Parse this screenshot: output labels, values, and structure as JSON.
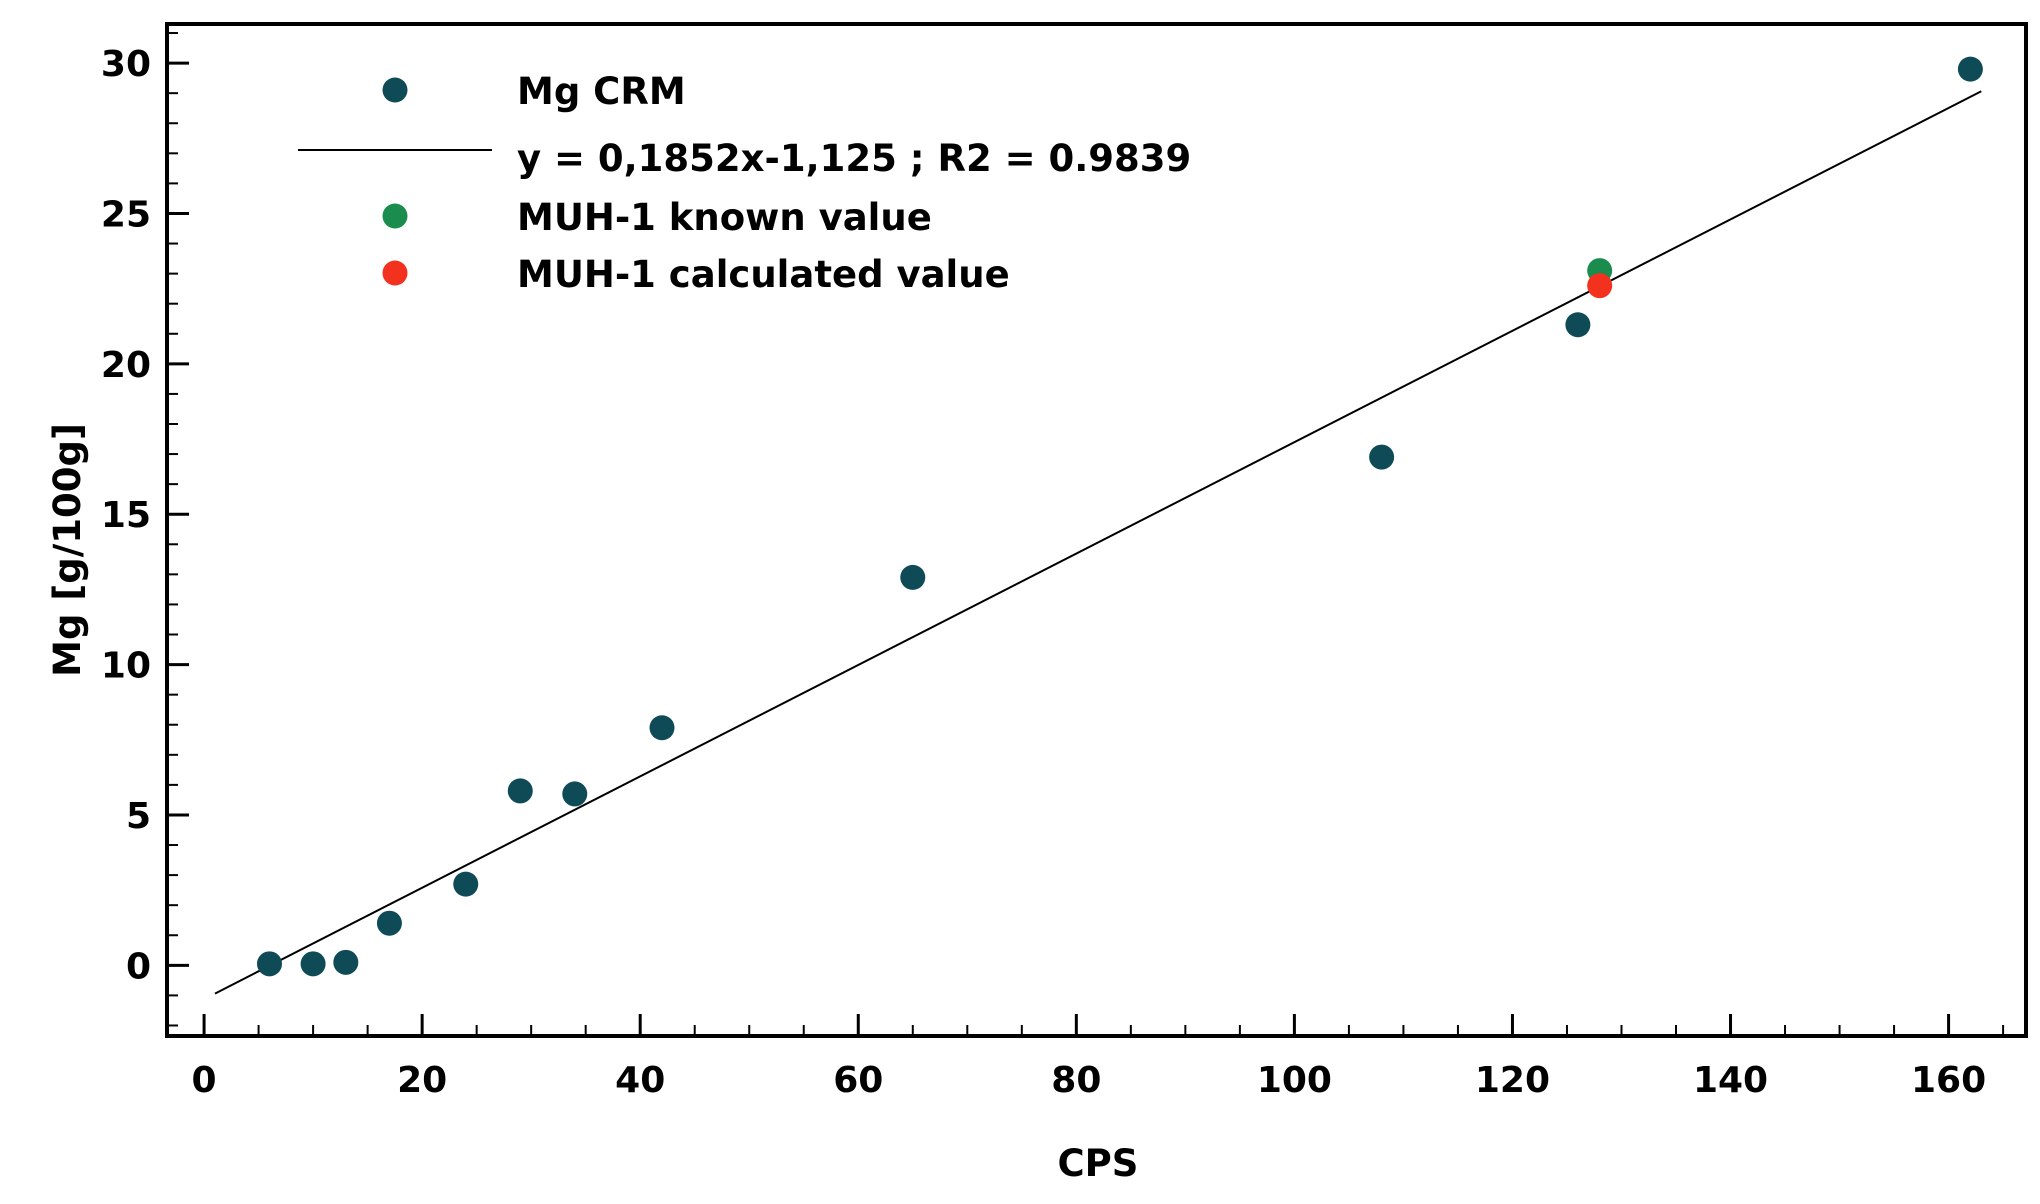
{
  "chart_data": {
    "type": "scatter",
    "title": "",
    "xlabel": "CPS",
    "ylabel": "Mg [g/100g]",
    "xlim": [
      -3.4,
      167.1
    ],
    "ylim": [
      -2.35,
      31.3
    ],
    "x_ticks": [
      0,
      20,
      40,
      60,
      80,
      100,
      120,
      140,
      160
    ],
    "y_ticks": [
      0,
      5,
      10,
      15,
      20,
      25,
      30
    ],
    "grid": false,
    "legend_position": "top-left",
    "series": [
      {
        "name": "Mg CRM",
        "color": "#0f4a57",
        "points": [
          [
            6,
            0.05
          ],
          [
            10,
            0.05
          ],
          [
            13,
            0.1
          ],
          [
            17,
            1.4
          ],
          [
            24,
            2.7
          ],
          [
            29,
            5.8
          ],
          [
            34,
            5.7
          ],
          [
            42,
            7.9
          ],
          [
            65,
            12.9
          ],
          [
            108,
            16.9
          ],
          [
            126,
            21.3
          ],
          [
            162,
            29.8
          ]
        ]
      },
      {
        "name": "y = 0,1852x-1,125 ; R2 = 0.9839",
        "type": "line",
        "color": "#000000",
        "slope": 0.1852,
        "intercept": -1.125,
        "x_range": [
          1,
          163
        ]
      },
      {
        "name": "MUH-1 known value",
        "color": "#1a8c4e",
        "points": [
          [
            128,
            23.1
          ]
        ]
      },
      {
        "name": "MUH-1 calculated value",
        "color": "#f2321f",
        "points": [
          [
            128,
            22.6
          ]
        ]
      }
    ]
  }
}
